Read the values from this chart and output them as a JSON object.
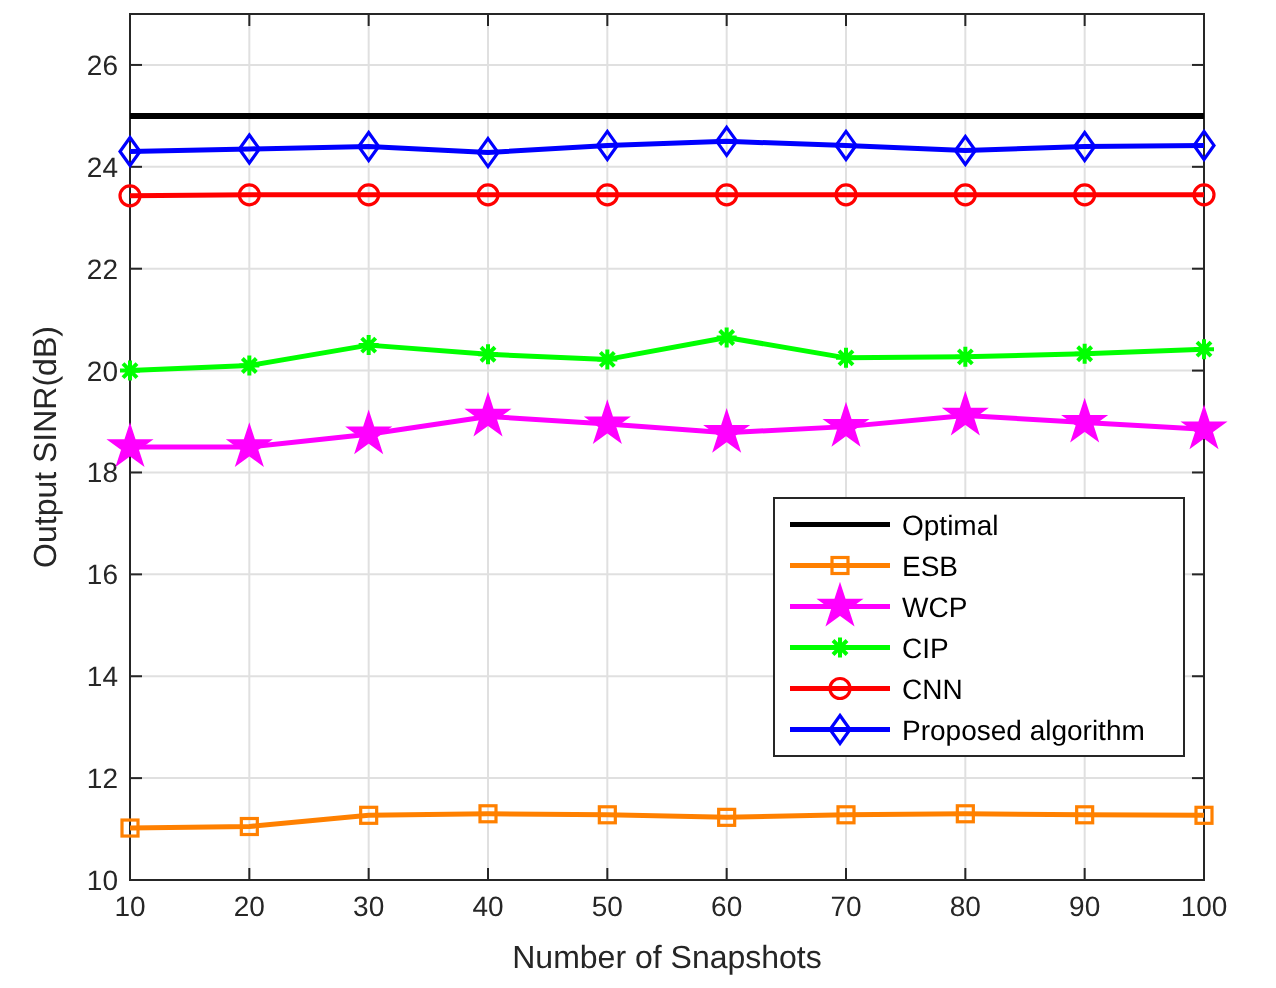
{
  "chart_data": {
    "type": "line",
    "xlabel": "Number of Snapshots",
    "ylabel": "Output SINR(dB)",
    "x": [
      10,
      20,
      30,
      40,
      50,
      60,
      70,
      80,
      90,
      100
    ],
    "xlim": [
      10,
      100
    ],
    "xticks": [
      10,
      20,
      30,
      40,
      50,
      60,
      70,
      80,
      90,
      100
    ],
    "ylim": [
      10,
      27
    ],
    "yticks": [
      10,
      12,
      14,
      16,
      18,
      20,
      22,
      24,
      26
    ],
    "grid": true,
    "legend": "bottom right",
    "series": [
      {
        "name": "Optimal",
        "color": "#000000",
        "marker": "none",
        "values": [
          25,
          25,
          25,
          25,
          25,
          25,
          25,
          25,
          25,
          25
        ]
      },
      {
        "name": "ESB",
        "color": "#ff8000",
        "marker": "square",
        "values": [
          11.02,
          11.05,
          11.27,
          11.3,
          11.28,
          11.23,
          11.28,
          11.3,
          11.28,
          11.27
        ]
      },
      {
        "name": "WCP",
        "color": "#ff00ff",
        "marker": "star",
        "values": [
          18.5,
          18.5,
          18.75,
          19.1,
          18.95,
          18.78,
          18.9,
          19.12,
          18.98,
          18.85
        ]
      },
      {
        "name": "CIP",
        "color": "#00ff00",
        "marker": "cross",
        "values": [
          20.0,
          20.1,
          20.5,
          20.32,
          20.22,
          20.65,
          20.25,
          20.27,
          20.33,
          20.42
        ]
      },
      {
        "name": "CNN",
        "color": "#ff0000",
        "marker": "circle",
        "values": [
          23.43,
          23.45,
          23.45,
          23.45,
          23.45,
          23.45,
          23.45,
          23.45,
          23.45,
          23.45
        ]
      },
      {
        "name": "Proposed algorithm",
        "color": "#0000ff",
        "marker": "diamond",
        "values": [
          24.3,
          24.35,
          24.4,
          24.28,
          24.42,
          24.5,
          24.42,
          24.32,
          24.4,
          24.42
        ]
      }
    ]
  }
}
